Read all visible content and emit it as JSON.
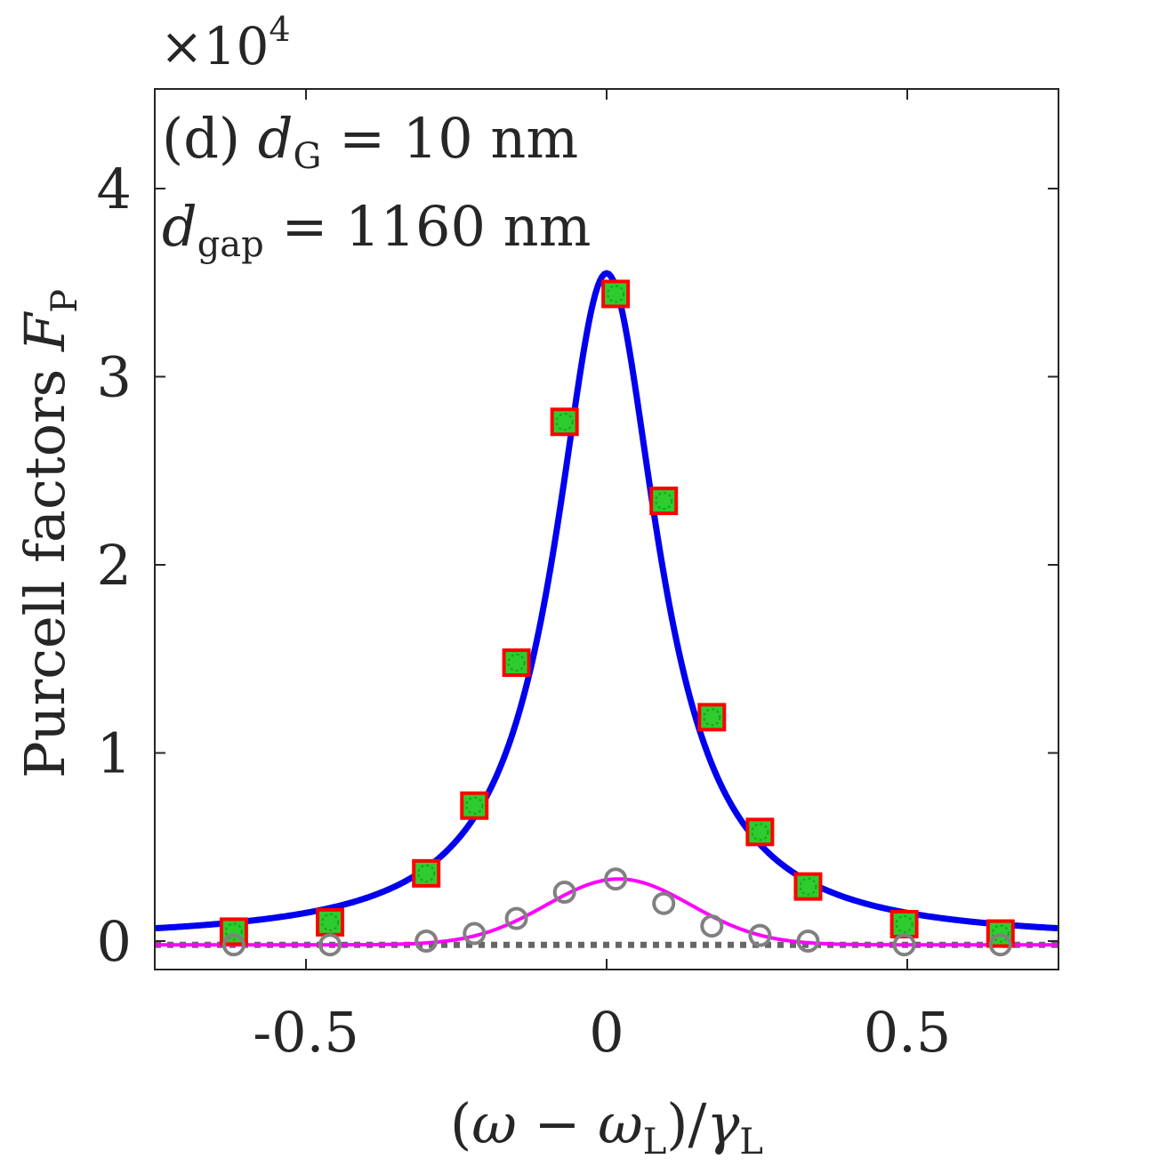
{
  "chart_data": {
    "type": "line",
    "panel_label": "(d)",
    "annotation": {
      "line1": {
        "symbol": "d",
        "subscript": "G",
        "rest": "= 10 nm"
      },
      "line2": {
        "symbol": "d",
        "subscript": "gap",
        "rest": "= 1160 nm"
      }
    },
    "multiplier": {
      "prefix": "×10",
      "exponent": "4"
    },
    "ylabel": {
      "text": "Purcell factors ",
      "symbol": "F",
      "subscript": "P"
    },
    "xlabel": {
      "open": "(",
      "omega": "ω",
      "minus": " − ",
      "omega2": "ω",
      "sub_L1": "L",
      "close": ")/",
      "gamma": "γ",
      "sub_L2": "L"
    },
    "xlim": [
      -0.75,
      0.75
    ],
    "ylim": [
      -0.15,
      4.5
    ],
    "xticks": [
      {
        "value": -0.5,
        "label": "-0.5"
      },
      {
        "value": 0,
        "label": "0"
      },
      {
        "value": 0.5,
        "label": "0.5"
      }
    ],
    "yticks": [
      {
        "value": 0,
        "label": "0"
      },
      {
        "value": 1,
        "label": "1"
      },
      {
        "value": 2,
        "label": "2"
      },
      {
        "value": 3,
        "label": "3"
      },
      {
        "value": 4,
        "label": "4"
      }
    ],
    "total_curve": {
      "peak": 3.55,
      "center": 0.0,
      "halfwidth": 0.105,
      "color": "#0000ee"
    },
    "partial_curve": {
      "peak": 0.33,
      "center": 0.02,
      "sigma": 0.12,
      "color": "#ff00ff"
    },
    "baseline": {
      "value": -0.02,
      "color": "#666666"
    },
    "series": [
      {
        "name": "squares",
        "marker": "square",
        "color": "#ff0000",
        "fill": "#2ecc2e",
        "points": [
          {
            "x": -0.62,
            "y": 0.05
          },
          {
            "x": -0.46,
            "y": 0.1
          },
          {
            "x": -0.3,
            "y": 0.36
          },
          {
            "x": -0.22,
            "y": 0.72
          },
          {
            "x": -0.15,
            "y": 1.48
          },
          {
            "x": -0.07,
            "y": 2.76
          },
          {
            "x": 0.015,
            "y": 3.44
          },
          {
            "x": 0.095,
            "y": 2.34
          },
          {
            "x": 0.175,
            "y": 1.19
          },
          {
            "x": 0.255,
            "y": 0.58
          },
          {
            "x": 0.335,
            "y": 0.29
          },
          {
            "x": 0.495,
            "y": 0.09
          },
          {
            "x": 0.655,
            "y": 0.04
          }
        ]
      },
      {
        "name": "circles",
        "marker": "circle",
        "color": "#808080",
        "points": [
          {
            "x": -0.62,
            "y": -0.02
          },
          {
            "x": -0.46,
            "y": -0.02
          },
          {
            "x": -0.3,
            "y": 0.0
          },
          {
            "x": -0.22,
            "y": 0.04
          },
          {
            "x": -0.15,
            "y": 0.12
          },
          {
            "x": -0.07,
            "y": 0.26
          },
          {
            "x": 0.015,
            "y": 0.33
          },
          {
            "x": 0.095,
            "y": 0.2
          },
          {
            "x": 0.175,
            "y": 0.08
          },
          {
            "x": 0.255,
            "y": 0.03
          },
          {
            "x": 0.335,
            "y": 0.0
          },
          {
            "x": 0.495,
            "y": -0.02
          },
          {
            "x": 0.655,
            "y": -0.02
          }
        ]
      }
    ]
  }
}
